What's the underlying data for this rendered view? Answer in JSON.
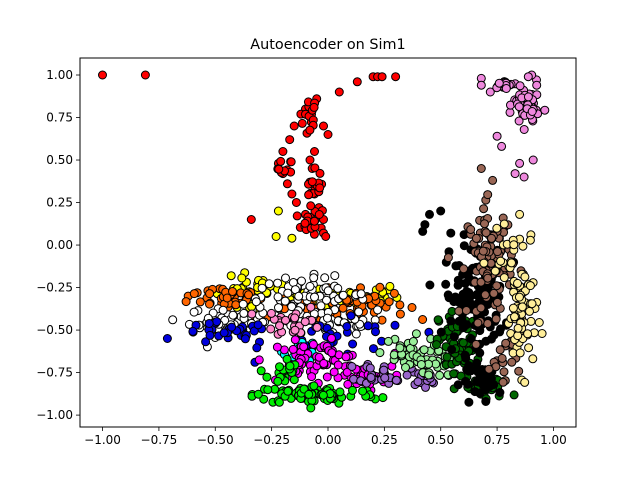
{
  "chart_data": {
    "type": "scatter",
    "title": "Autoencoder on Sim1",
    "xlabel": "",
    "ylabel": "",
    "xlim": [
      -1.1,
      1.1
    ],
    "ylim": [
      -1.07,
      1.1
    ],
    "xticks": [
      -1.0,
      -0.75,
      -0.5,
      -0.25,
      0.0,
      0.25,
      0.5,
      0.75,
      1.0
    ],
    "yticks": [
      -1.0,
      -0.75,
      -0.5,
      -0.25,
      0.0,
      0.25,
      0.5,
      0.75,
      1.0
    ],
    "xtick_labels": [
      "−1.00",
      "−0.75",
      "−0.50",
      "−0.25",
      "0.00",
      "0.25",
      "0.50",
      "0.75",
      "1.00"
    ],
    "ytick_labels": [
      "−1.00",
      "−0.75",
      "−0.50",
      "−0.25",
      "0.00",
      "0.25",
      "0.50",
      "0.75",
      "1.00"
    ],
    "grid": false,
    "legend": "none",
    "marker_edge_color": "#000000",
    "series": [
      {
        "color": "#ff0000",
        "points": [
          [
            -1.0,
            1.0
          ],
          [
            -0.81,
            1.0
          ],
          [
            0.05,
            0.9
          ],
          [
            0.13,
            0.96
          ],
          [
            0.2,
            0.99
          ],
          [
            0.22,
            0.99
          ],
          [
            0.24,
            0.99
          ],
          [
            0.3,
            0.99
          ],
          [
            -0.34,
            0.15
          ],
          [
            -0.02,
            0.7
          ],
          [
            0.0,
            0.65
          ],
          [
            -0.05,
            0.86
          ],
          [
            -0.1,
            0.8
          ],
          [
            -0.06,
            0.55
          ],
          [
            -0.08,
            0.5
          ],
          [
            -0.07,
            0.45
          ],
          [
            -0.08,
            0.37
          ],
          [
            -0.06,
            0.3
          ],
          [
            -0.04,
            0.22
          ],
          [
            -0.02,
            0.15
          ],
          [
            -0.03,
            0.1
          ],
          [
            -0.02,
            0.07
          ],
          [
            -0.01,
            0.05
          ],
          [
            -0.1,
            0.18
          ],
          [
            -0.14,
            0.25
          ],
          [
            -0.16,
            0.3
          ],
          [
            -0.18,
            0.36
          ],
          [
            -0.2,
            0.42
          ],
          [
            -0.22,
            0.48
          ],
          [
            -0.2,
            0.55
          ],
          [
            -0.17,
            0.62
          ],
          [
            -0.15,
            0.7
          ],
          [
            -0.12,
            0.77
          ]
        ],
        "clusters": [
          [
            -0.08,
            0.75,
            0.03,
            0.12,
            16
          ],
          [
            -0.05,
            0.32,
            0.04,
            0.12,
            18
          ],
          [
            -0.19,
            0.45,
            0.03,
            0.05,
            10
          ],
          [
            -0.08,
            0.13,
            0.05,
            0.06,
            14
          ]
        ]
      },
      {
        "color": "#ffff00",
        "points": [
          [
            -0.22,
            0.2
          ],
          [
            -0.23,
            0.05
          ],
          [
            -0.16,
            0.04
          ]
        ],
        "clusters": [
          [
            -0.3,
            -0.3,
            0.2,
            0.1,
            45
          ],
          [
            0.15,
            -0.3,
            0.15,
            0.07,
            25
          ]
        ]
      },
      {
        "color": "#ff6600",
        "points": [
          [
            -0.62,
            -0.3
          ],
          [
            -0.58,
            -0.28
          ],
          [
            0.0,
            -0.25
          ]
        ],
        "clusters": [
          [
            -0.45,
            -0.3,
            0.15,
            0.07,
            35
          ],
          [
            0.15,
            -0.35,
            0.18,
            0.08,
            40
          ],
          [
            -0.1,
            -0.38,
            0.2,
            0.1,
            35
          ]
        ]
      },
      {
        "color": "#ffffff",
        "points": [],
        "clusters": [
          [
            -0.45,
            -0.45,
            0.15,
            0.08,
            45
          ],
          [
            -0.1,
            -0.3,
            0.25,
            0.1,
            70
          ],
          [
            0.0,
            -0.45,
            0.25,
            0.08,
            40
          ]
        ]
      },
      {
        "color": "#0000dd",
        "points": [],
        "clusters": [
          [
            -0.45,
            -0.52,
            0.18,
            0.06,
            30
          ],
          [
            0.05,
            -0.55,
            0.3,
            0.1,
            30
          ]
        ]
      },
      {
        "color": "#ff88cc",
        "points": [],
        "clusters": [
          [
            -0.15,
            -0.45,
            0.12,
            0.08,
            25
          ]
        ]
      },
      {
        "color": "#00ffff",
        "points": [],
        "clusters": [
          [
            -0.12,
            -0.62,
            0.07,
            0.06,
            12
          ]
        ]
      },
      {
        "color": "#ff00ff",
        "points": [],
        "clusters": [
          [
            -0.05,
            -0.68,
            0.2,
            0.1,
            70
          ],
          [
            0.15,
            -0.78,
            0.12,
            0.06,
            30
          ]
        ]
      },
      {
        "color": "#00ee00",
        "points": [],
        "clusters": [
          [
            -0.05,
            -0.88,
            0.25,
            0.05,
            90
          ],
          [
            -0.2,
            -0.75,
            0.06,
            0.08,
            20
          ]
        ]
      },
      {
        "color": "#9966cc",
        "points": [],
        "clusters": [
          [
            0.25,
            -0.75,
            0.1,
            0.06,
            30
          ],
          [
            0.42,
            -0.8,
            0.06,
            0.06,
            15
          ]
        ]
      },
      {
        "color": "#99ee99",
        "points": [],
        "clusters": [
          [
            0.35,
            -0.65,
            0.12,
            0.1,
            45
          ],
          [
            0.5,
            -0.7,
            0.08,
            0.08,
            20
          ]
        ]
      },
      {
        "color": "#006600",
        "points": [],
        "clusters": [
          [
            0.58,
            -0.6,
            0.08,
            0.2,
            70
          ],
          [
            0.7,
            -0.85,
            0.1,
            0.06,
            25
          ]
        ]
      },
      {
        "color": "#000000",
        "points": [
          [
            0.7,
            -0.92
          ],
          [
            0.5,
            0.2
          ],
          [
            0.45,
            0.18
          ],
          [
            0.43,
            0.12
          ],
          [
            0.42,
            0.08
          ]
        ],
        "clusters": [
          [
            0.65,
            -0.3,
            0.12,
            0.3,
            130
          ],
          [
            0.7,
            -0.8,
            0.1,
            0.08,
            30
          ]
        ]
      },
      {
        "color": "#996655",
        "points": [
          [
            0.68,
            0.45
          ],
          [
            0.73,
            0.38
          ]
        ],
        "clusters": [
          [
            0.72,
            -0.1,
            0.09,
            0.3,
            100
          ],
          [
            0.78,
            -0.65,
            0.06,
            0.12,
            20
          ]
        ]
      },
      {
        "color": "#ffee99",
        "points": [
          [
            0.85,
            0.18
          ],
          [
            0.9,
            0.06
          ]
        ],
        "clusters": [
          [
            0.86,
            -0.4,
            0.06,
            0.3,
            70
          ],
          [
            0.8,
            -0.1,
            0.08,
            0.15,
            20
          ]
        ]
      },
      {
        "color": "#ee88dd",
        "points": [
          [
            0.68,
            0.98
          ],
          [
            0.75,
            0.64
          ],
          [
            0.77,
            0.58
          ],
          [
            0.85,
            0.48
          ],
          [
            0.83,
            0.42
          ],
          [
            0.87,
            0.4
          ],
          [
            0.91,
            0.5
          ],
          [
            0.68,
            0.94
          ],
          [
            0.72,
            0.9
          ]
        ],
        "clusters": [
          [
            0.88,
            0.82,
            0.05,
            0.12,
            60
          ],
          [
            0.79,
            0.94,
            0.05,
            0.03,
            20
          ]
        ]
      }
    ]
  }
}
